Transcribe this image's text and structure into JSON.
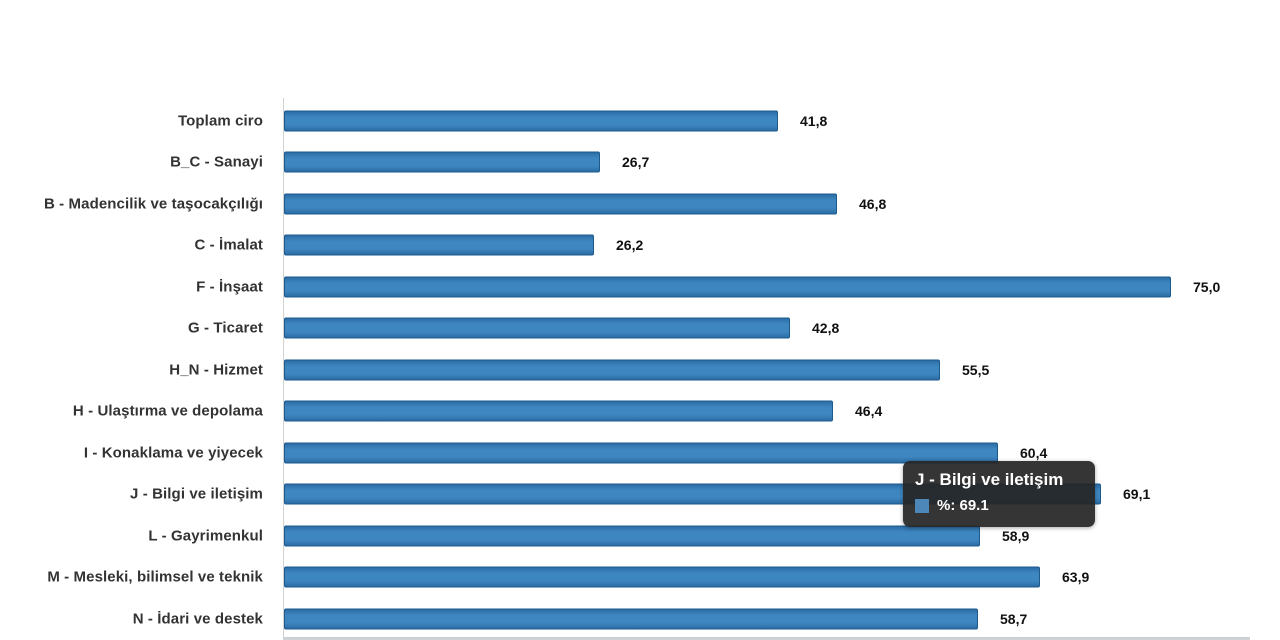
{
  "chart_data": {
    "type": "bar",
    "orientation": "horizontal",
    "title": "",
    "xlabel": "",
    "ylabel": "",
    "xlim": [
      0,
      80
    ],
    "grid": false,
    "legend": "none",
    "decimal_separator_labels": ",",
    "categories": [
      "Toplam ciro",
      "B_C - Sanayi",
      "B - Madencilik ve taşocakçılığı",
      "C - İmalat",
      "F - İnşaat",
      "G - Ticaret",
      "H_N - Hizmet",
      "H - Ulaştırma ve depolama",
      "I - Konaklama ve yiyecek",
      "J - Bilgi ve iletişim",
      "L - Gayrimenkul",
      "M - Mesleki, bilimsel ve teknik",
      "N - İdari ve destek"
    ],
    "values": [
      41.8,
      26.7,
      46.8,
      26.2,
      75.0,
      42.8,
      55.5,
      46.4,
      60.4,
      69.1,
      58.9,
      63.9,
      58.7
    ],
    "value_labels": [
      "41,8",
      "26,7",
      "46,8",
      "26,2",
      "75,0",
      "42,8",
      "55,5",
      "46,4",
      "60,4",
      "69,1",
      "58,9",
      "63,9",
      "58,7"
    ],
    "bar_color": "#3e86c0",
    "bar_border_color": "#1c5a8c",
    "hovered_category": "J - Bilgi ve iletişim",
    "clipped_next_row_visible": true
  },
  "tooltip": {
    "title": "J - Bilgi ve iletişim",
    "series_name": "%",
    "value": "69.1",
    "text": "%: 69.1",
    "swatch_color": "#4d86b8",
    "background_color": "#262626"
  }
}
